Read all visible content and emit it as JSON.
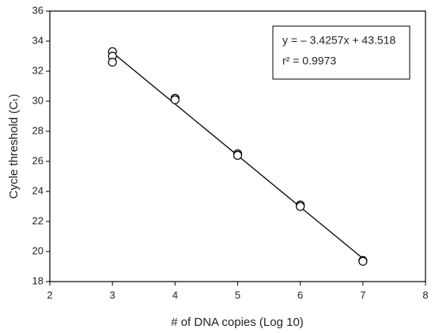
{
  "chart_data": {
    "type": "scatter",
    "x_label": "# of DNA copies (Log 10)",
    "y_label": "Cycle threshold (Cₜ)",
    "annotations": [
      "y = – 3.4257x + 43.518",
      "r² = 0.9973"
    ],
    "series": [
      {
        "color": "#000000",
        "x": [
          3,
          3,
          3,
          4,
          4,
          5,
          5,
          6,
          6,
          7,
          7
        ],
        "values": [
          33.3,
          33.0,
          32.6,
          30.2,
          30.1,
          26.5,
          26.4,
          23.1,
          23.0,
          19.4,
          19.35
        ]
      }
    ],
    "trendline": {
      "slope": -3.4257,
      "intercept": 43.518
    },
    "xlim": [
      2,
      8
    ],
    "xticks": [
      2,
      3,
      4,
      5,
      6,
      7,
      8
    ],
    "ylim": [
      18,
      36
    ],
    "yticks": [
      18,
      20,
      22,
      24,
      26,
      28,
      30,
      32,
      34,
      36
    ],
    "grid": false
  }
}
